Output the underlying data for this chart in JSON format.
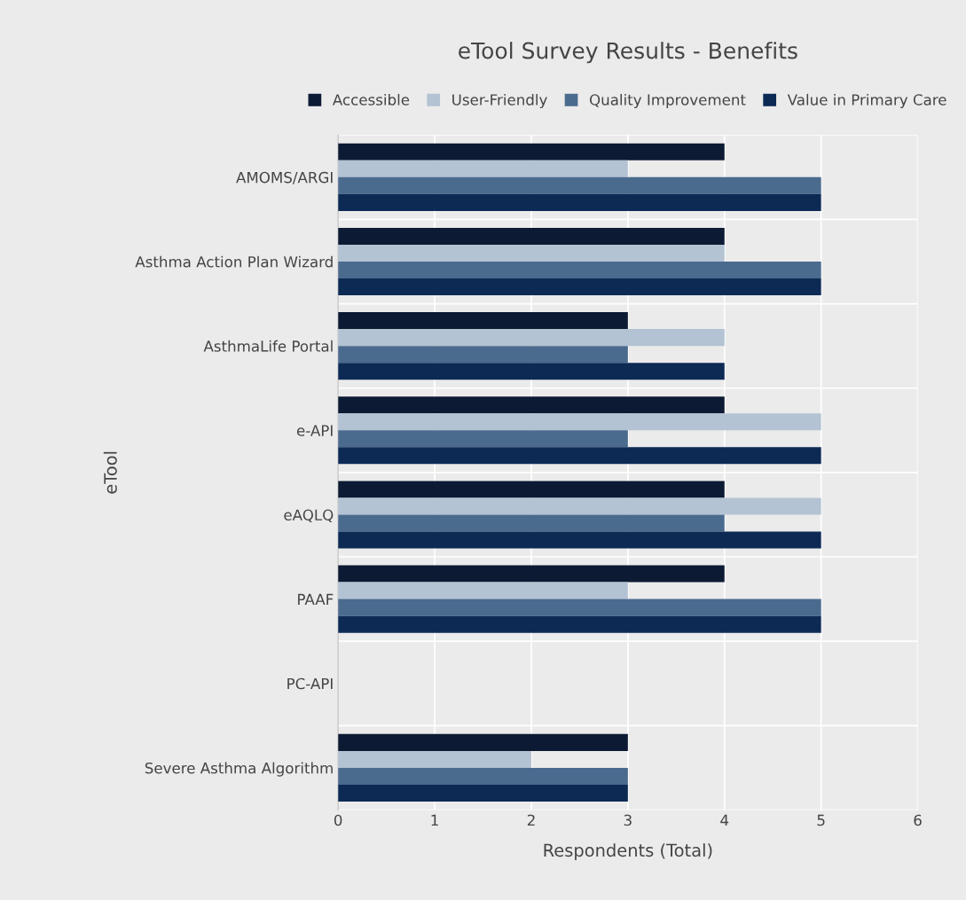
{
  "chart_data": {
    "type": "bar",
    "orientation": "horizontal",
    "title": "eTool Survey Results - Benefits",
    "xlabel": "Respondents (Total)",
    "ylabel": "eTool",
    "categories": [
      "AMOMS/ARGI",
      "Asthma Action Plan Wizard",
      "AsthmaLife Portal",
      "e-API",
      "eAQLQ",
      "PAAF",
      "PC-API",
      "Severe Asthma Algorithm"
    ],
    "series": [
      {
        "name": "Accessible",
        "color": "#0c1a33",
        "values": [
          4,
          4,
          3,
          4,
          4,
          4,
          0,
          3
        ]
      },
      {
        "name": "User-Friendly",
        "color": "#b4c3d3",
        "values": [
          3,
          4,
          4,
          5,
          5,
          3,
          0,
          2
        ]
      },
      {
        "name": "Quality Improvement",
        "color": "#4a6b8e",
        "values": [
          5,
          5,
          3,
          3,
          4,
          5,
          0,
          3
        ]
      },
      {
        "name": "Value in Primary Care",
        "color": "#0d2a55",
        "values": [
          5,
          5,
          4,
          5,
          5,
          5,
          0,
          3
        ]
      }
    ],
    "xlim": [
      0,
      6
    ],
    "xticks": [
      0,
      1,
      2,
      3,
      4,
      5,
      6
    ],
    "grid": true,
    "legend": "top"
  }
}
